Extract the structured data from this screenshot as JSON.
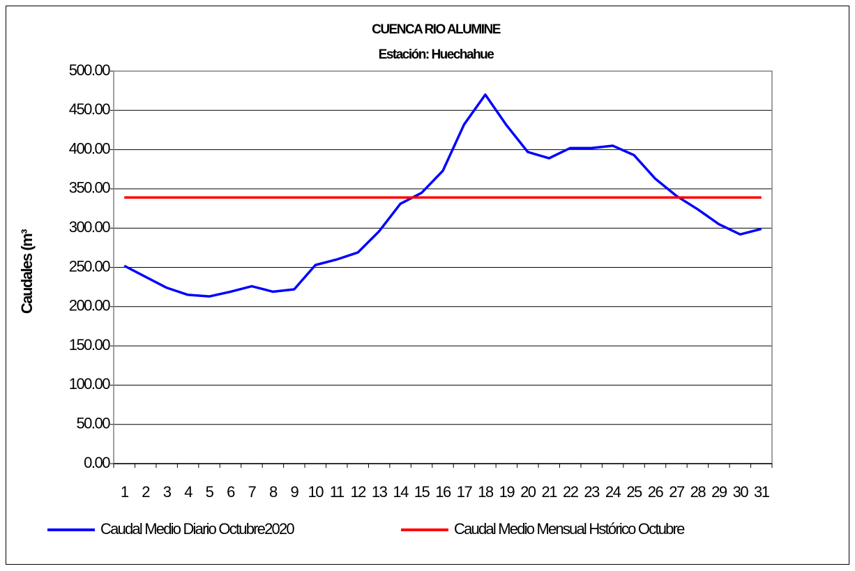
{
  "chart_data": {
    "type": "line",
    "title": "CUENCA RIO ALUMINE",
    "subtitle": "Estación: Huechahue",
    "y_label": "Caudales (m³",
    "categories": [
      "1",
      "2",
      "3",
      "4",
      "5",
      "6",
      "7",
      "8",
      "9",
      "10",
      "11",
      "12",
      "13",
      "14",
      "15",
      "16",
      "17",
      "18",
      "19",
      "20",
      "21",
      "22",
      "23",
      "24",
      "25",
      "26",
      "27",
      "28",
      "29",
      "30",
      "31"
    ],
    "series": [
      {
        "name": "Caudal Medio Diario Octubre2020",
        "color": "#0000ff",
        "values": [
          252,
          238,
          224,
          215,
          213,
          219,
          226,
          219,
          222,
          253,
          260,
          269,
          296,
          331,
          345,
          373,
          432,
          470,
          431,
          397,
          389,
          402,
          402,
          405,
          393,
          363,
          341,
          324,
          305,
          292,
          299
        ]
      },
      {
        "name": "Caudal Medio Mensual Hstórico Octubre",
        "color": "#ff0000",
        "values": [
          339,
          339,
          339,
          339,
          339,
          339,
          339,
          339,
          339,
          339,
          339,
          339,
          339,
          339,
          339,
          339,
          339,
          339,
          339,
          339,
          339,
          339,
          339,
          339,
          339,
          339,
          339,
          339,
          339,
          339,
          339
        ]
      }
    ],
    "ylim": [
      0,
      500
    ],
    "yticks": [
      {
        "value": 0,
        "label": "0.00"
      },
      {
        "value": 50,
        "label": "50.00"
      },
      {
        "value": 100,
        "label": "100.00"
      },
      {
        "value": 150,
        "label": "150.00"
      },
      {
        "value": 200,
        "label": "200.00"
      },
      {
        "value": 250,
        "label": "250.00"
      },
      {
        "value": 300,
        "label": "300.00"
      },
      {
        "value": 350,
        "label": "350.00"
      },
      {
        "value": 400,
        "label": "400.00"
      },
      {
        "value": 450,
        "label": "450.00"
      },
      {
        "value": 500,
        "label": "500.00"
      }
    ],
    "grid": true,
    "legend": "bottom"
  }
}
